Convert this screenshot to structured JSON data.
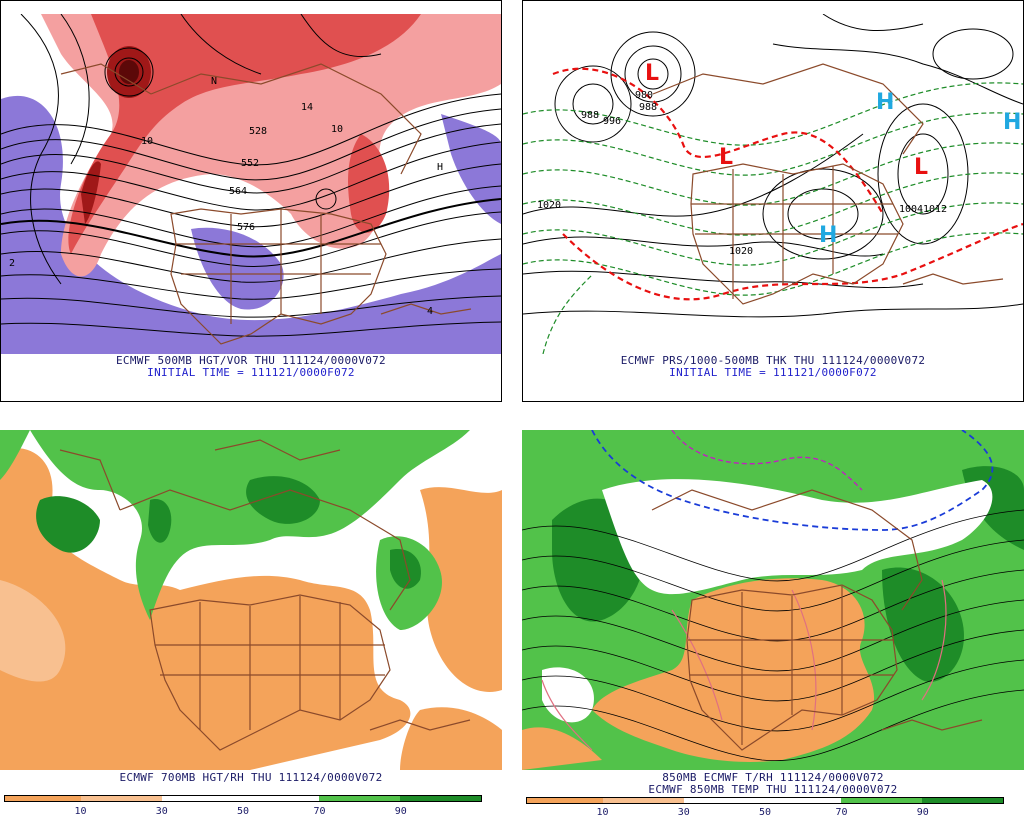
{
  "panels": {
    "tl": {
      "caption1": "ECMWF 500MB HGT/VOR THU 111124/0000V072",
      "caption2": "INITIAL TIME = 111121/0000F072",
      "labels": [
        "528",
        "552",
        "564",
        "576",
        "10",
        "14",
        "10",
        "N",
        "H",
        "2",
        "4"
      ]
    },
    "tr": {
      "caption1": "ECMWF PRS/1000-500MB THK THU 111124/0000V072",
      "caption2": "INITIAL TIME = 111121/0000F072",
      "labels": [
        "L",
        "L",
        "L",
        "H",
        "H",
        "H",
        "980",
        "988",
        "988",
        "996",
        "1004",
        "1020",
        "1020",
        "1012"
      ]
    },
    "bl": {
      "caption1": "ECMWF 700MB HGT/RH THU 111124/0000V072",
      "ticks": [
        "10",
        "30",
        "50",
        "70",
        "90"
      ]
    },
    "br": {
      "caption1": "850MB ECMWF T/RH 111124/0000V072",
      "caption2": "ECMWF 850MB TEMP THU 111124/0000V072",
      "ticks": [
        "10",
        "30",
        "50",
        "70",
        "90"
      ]
    }
  },
  "colors": {
    "vort_light": "#f4a0a0",
    "vort_mid": "#e05050",
    "vort_dark": "#a01818",
    "neg_vort": "#8c78d8",
    "rh_dry": "#f4a35a",
    "rh_dry_light": "#f8c090",
    "rh_moist": "#52c24a",
    "rh_wet": "#1e8c28",
    "map_lines": "#8b4a2b",
    "low_marker": "#e81010",
    "high_marker": "#20a8e0"
  }
}
